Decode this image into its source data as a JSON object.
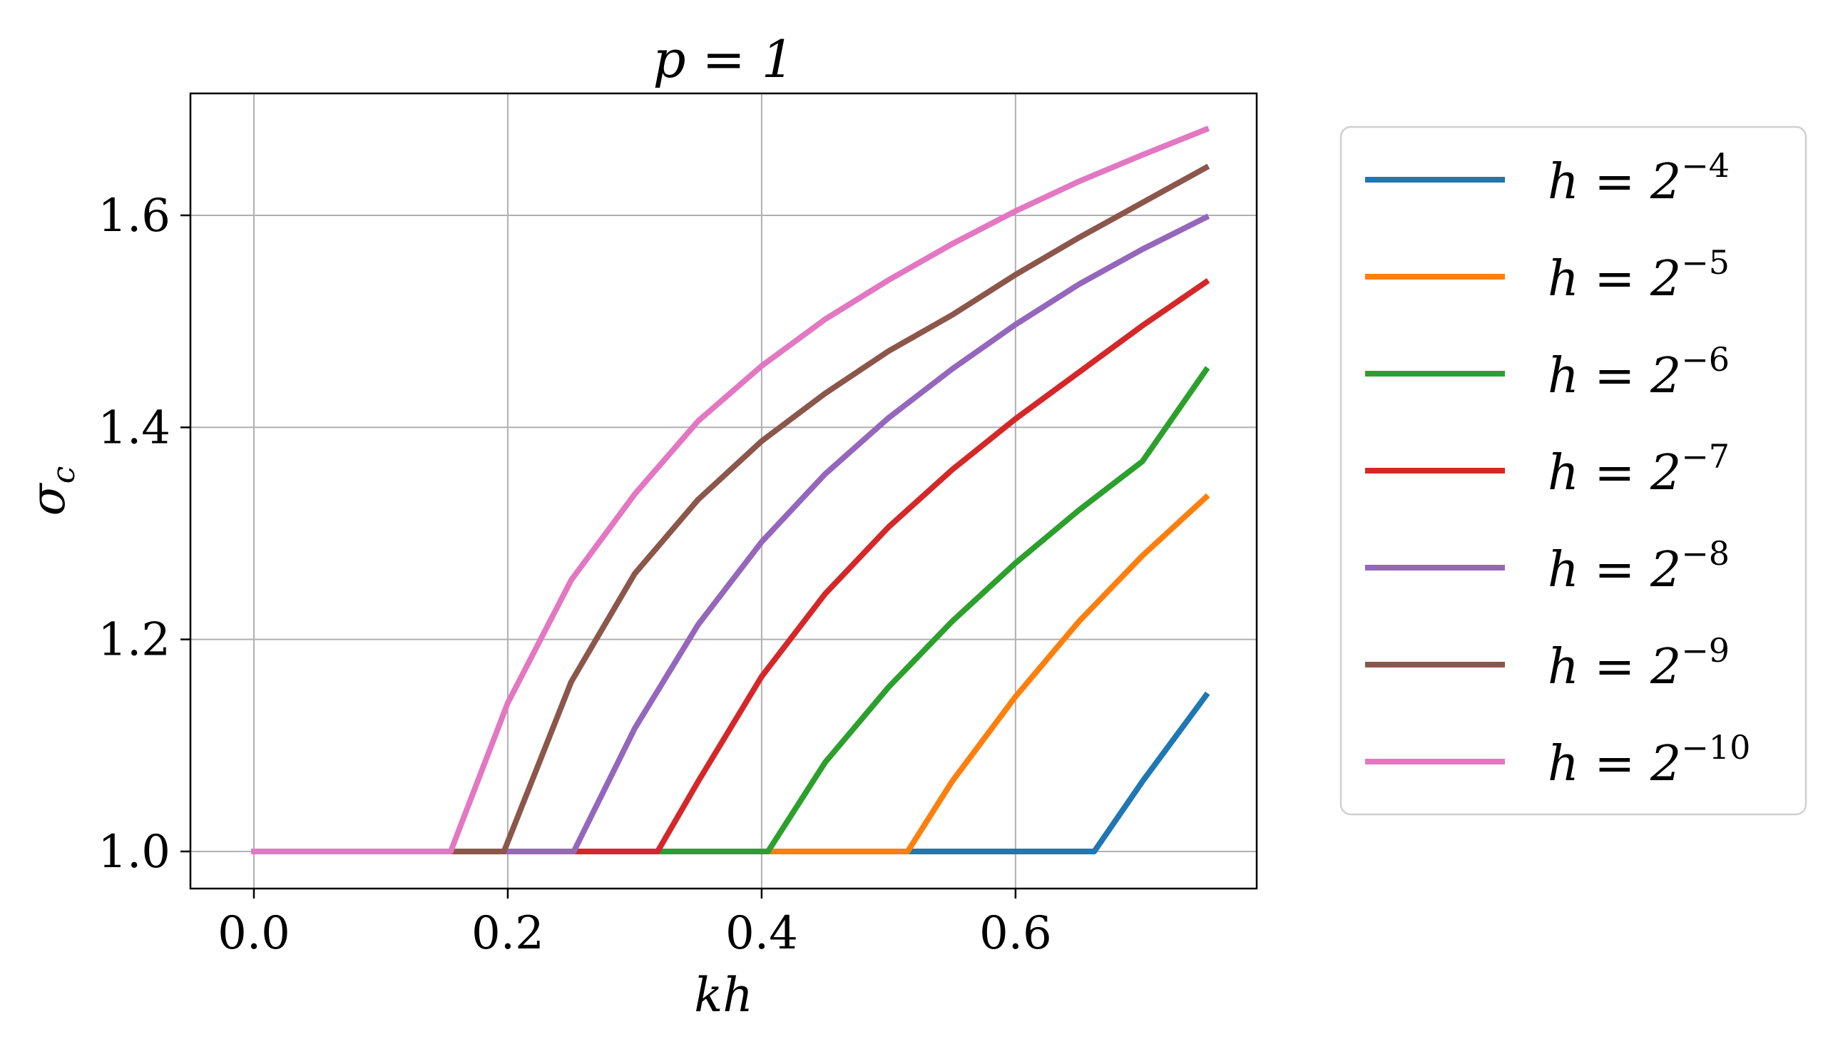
{
  "chart_data": {
    "type": "line",
    "title": "p = 1",
    "xlabel": "kh",
    "ylabel": "σ",
    "ylabel_subscript": "c",
    "xlim": [
      -0.05,
      0.79
    ],
    "ylim": [
      0.965,
      1.715
    ],
    "xticks": [
      0.0,
      0.2,
      0.4,
      0.6
    ],
    "xtick_labels": [
      "0.0",
      "0.2",
      "0.4",
      "0.6"
    ],
    "yticks": [
      1.0,
      1.2,
      1.4,
      1.6
    ],
    "ytick_labels": [
      "1.0",
      "1.2",
      "1.4",
      "1.6"
    ],
    "grid": true,
    "legend_position": "outside-right",
    "series": [
      {
        "name": "h = 2^-4",
        "base": "h = 2",
        "exponent": "−4",
        "color": "#1f77b4",
        "x": [
          0.0,
          0.662,
          0.7,
          0.75
        ],
        "y": [
          1.0,
          1.0,
          1.066,
          1.147
        ]
      },
      {
        "name": "h = 2^-5",
        "base": "h = 2",
        "exponent": "−5",
        "color": "#ff7f0e",
        "x": [
          0.0,
          0.515,
          0.55,
          0.6,
          0.65,
          0.7,
          0.75
        ],
        "y": [
          1.0,
          1.0,
          1.066,
          1.146,
          1.217,
          1.279,
          1.334
        ]
      },
      {
        "name": "h = 2^-6",
        "base": "h = 2",
        "exponent": "−6",
        "color": "#2ca02c",
        "x": [
          0.0,
          0.405,
          0.45,
          0.5,
          0.55,
          0.6,
          0.65,
          0.7,
          0.75
        ],
        "y": [
          1.0,
          1.0,
          1.084,
          1.155,
          1.217,
          1.272,
          1.322,
          1.368,
          1.454
        ]
      },
      {
        "name": "h = 2^-7",
        "base": "h = 2",
        "exponent": "−7",
        "color": "#d62728",
        "x": [
          0.0,
          0.318,
          0.35,
          0.4,
          0.45,
          0.5,
          0.55,
          0.6,
          0.65,
          0.7,
          0.75
        ],
        "y": [
          1.0,
          1.0,
          1.066,
          1.165,
          1.243,
          1.306,
          1.36,
          1.408,
          1.452,
          1.496,
          1.537
        ]
      },
      {
        "name": "h = 2^-8",
        "base": "h = 2",
        "exponent": "−8",
        "color": "#9467bd",
        "x": [
          0.0,
          0.252,
          0.3,
          0.35,
          0.4,
          0.45,
          0.5,
          0.55,
          0.6,
          0.65,
          0.7,
          0.75
        ],
        "y": [
          1.0,
          1.0,
          1.116,
          1.214,
          1.292,
          1.356,
          1.409,
          1.455,
          1.497,
          1.535,
          1.568,
          1.598
        ]
      },
      {
        "name": "h = 2^-9",
        "base": "h = 2",
        "exponent": "−9",
        "color": "#8c564b",
        "x": [
          0.0,
          0.197,
          0.25,
          0.3,
          0.35,
          0.4,
          0.45,
          0.5,
          0.55,
          0.6,
          0.65,
          0.7,
          0.75
        ],
        "y": [
          1.0,
          1.0,
          1.16,
          1.262,
          1.332,
          1.387,
          1.432,
          1.472,
          1.506,
          1.544,
          1.579,
          1.612,
          1.645
        ]
      },
      {
        "name": "h = 2^-10",
        "base": "h = 2",
        "exponent": "−10",
        "color": "#e377c2",
        "x": [
          0.0,
          0.155,
          0.2,
          0.25,
          0.3,
          0.35,
          0.4,
          0.45,
          0.5,
          0.55,
          0.6,
          0.65,
          0.7,
          0.75
        ],
        "y": [
          1.0,
          1.0,
          1.14,
          1.256,
          1.337,
          1.406,
          1.458,
          1.502,
          1.539,
          1.573,
          1.604,
          1.632,
          1.657,
          1.681
        ]
      }
    ]
  }
}
